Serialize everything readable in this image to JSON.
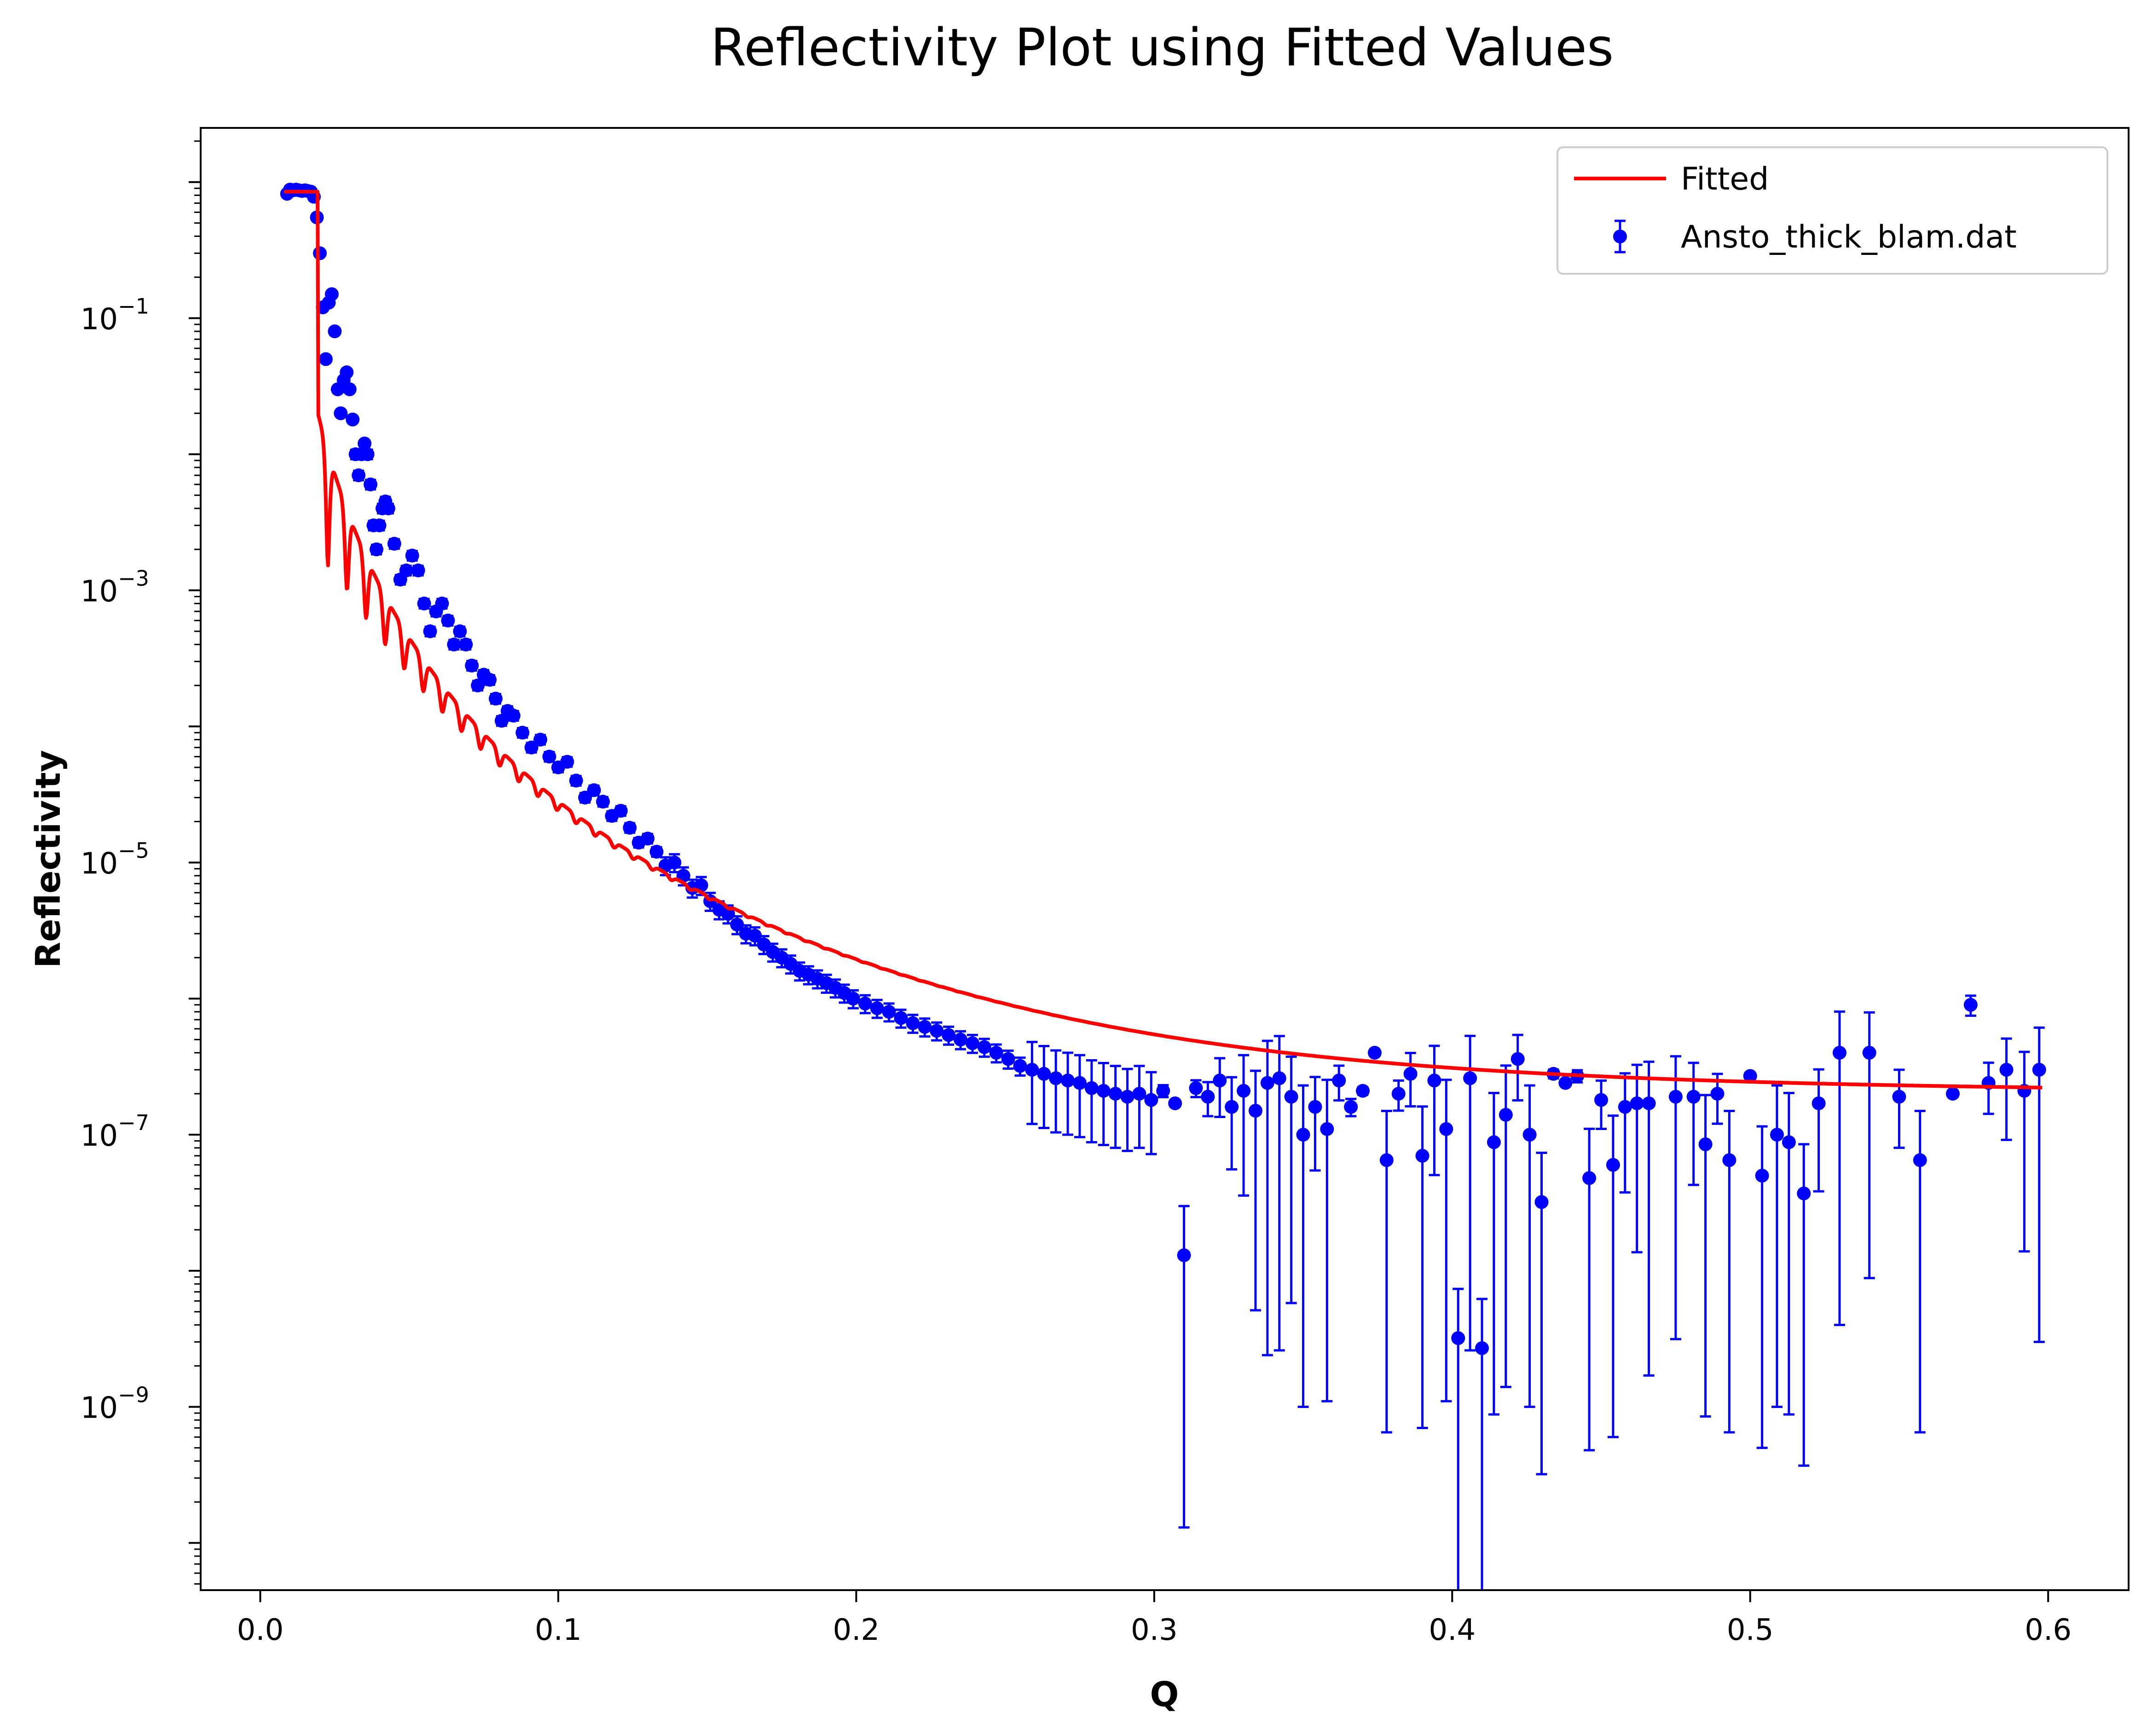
{
  "chart_data": {
    "type": "scatter",
    "title": "Reflectivity Plot using Fitted Values",
    "xlabel": "Q",
    "ylabel": "Reflectivity",
    "xlim": [
      -0.02,
      0.627
    ],
    "ylim_log10": [
      -10.35,
      -5.5
    ],
    "yscale": "log",
    "ylim": [
      4.5e-11,
      2.5
    ],
    "x_ticks": [
      "0.0",
      "0.1",
      "0.2",
      "0.3",
      "0.4",
      "0.5",
      "0.6"
    ],
    "x_tick_values": [
      0.0,
      0.1,
      0.2,
      0.3,
      0.4,
      0.5,
      0.6
    ],
    "y_ticks": [
      {
        "base": "10",
        "exp": "−1",
        "value": 0.1
      },
      {
        "base": "10",
        "exp": "−3",
        "value": 0.001
      },
      {
        "base": "10",
        "exp": "−5",
        "value": 1e-05
      },
      {
        "base": "10",
        "exp": "−7",
        "value": 1e-07
      },
      {
        "base": "10",
        "exp": "−9",
        "value": 1e-09
      }
    ],
    "grid": false,
    "legend_position": "top-right",
    "series": [
      {
        "name": "Fitted",
        "kind": "line",
        "color": "#ff0000",
        "model": {
          "q_start": 0.008,
          "q_critical": 0.0195,
          "q_end": 0.598,
          "plateau": 0.85,
          "background": 2e-07,
          "envelope_coeff": 2.8e-09,
          "envelope_power": 4,
          "fringe_period": 0.0064,
          "fringe_depth_decay": 0.045
        }
      },
      {
        "name": "Ansto_thick_blam.dat",
        "kind": "errorbar",
        "color": "#0000ff",
        "points": [
          [
            0.009,
            0.82
          ],
          [
            0.01,
            0.88
          ],
          [
            0.011,
            0.87
          ],
          [
            0.012,
            0.88
          ],
          [
            0.013,
            0.87
          ],
          [
            0.014,
            0.86
          ],
          [
            0.015,
            0.87
          ],
          [
            0.016,
            0.86
          ],
          [
            0.017,
            0.85
          ],
          [
            0.018,
            0.78
          ],
          [
            0.019,
            0.55
          ],
          [
            0.02,
            0.3
          ],
          [
            0.021,
            0.12
          ],
          [
            0.022,
            0.05
          ],
          [
            0.023,
            0.13
          ],
          [
            0.024,
            0.15
          ],
          [
            0.025,
            0.08
          ],
          [
            0.026,
            0.03
          ],
          [
            0.027,
            0.02
          ],
          [
            0.028,
            0.035
          ],
          [
            0.029,
            0.04
          ],
          [
            0.03,
            0.03
          ],
          [
            0.031,
            0.018
          ],
          [
            0.032,
            0.01
          ],
          [
            0.033,
            0.007
          ],
          [
            0.034,
            0.01
          ],
          [
            0.035,
            0.012
          ],
          [
            0.036,
            0.01
          ],
          [
            0.037,
            0.006
          ],
          [
            0.038,
            0.003
          ],
          [
            0.039,
            0.002
          ],
          [
            0.04,
            0.003
          ],
          [
            0.041,
            0.004
          ],
          [
            0.042,
            0.0045
          ],
          [
            0.043,
            0.004
          ],
          [
            0.045,
            0.0022
          ],
          [
            0.047,
            0.0012
          ],
          [
            0.049,
            0.0014
          ],
          [
            0.051,
            0.0018
          ],
          [
            0.053,
            0.0014
          ],
          [
            0.055,
            0.0008
          ],
          [
            0.057,
            0.0005
          ],
          [
            0.059,
            0.0007
          ],
          [
            0.061,
            0.0008
          ],
          [
            0.063,
            0.0006
          ],
          [
            0.065,
            0.0004
          ],
          [
            0.067,
            0.0005
          ],
          [
            0.069,
            0.0004
          ],
          [
            0.071,
            0.00028
          ],
          [
            0.073,
            0.0002
          ],
          [
            0.075,
            0.00024
          ],
          [
            0.077,
            0.00022
          ],
          [
            0.079,
            0.00016
          ],
          [
            0.081,
            0.00011
          ],
          [
            0.083,
            0.00013
          ],
          [
            0.085,
            0.00012
          ],
          [
            0.088,
            9e-05
          ],
          [
            0.091,
            7e-05
          ],
          [
            0.094,
            8e-05
          ],
          [
            0.097,
            6e-05
          ],
          [
            0.1,
            5e-05
          ],
          [
            0.103,
            5.5e-05
          ],
          [
            0.106,
            4e-05
          ],
          [
            0.109,
            3e-05
          ],
          [
            0.112,
            3.4e-05
          ],
          [
            0.115,
            2.8e-05
          ],
          [
            0.118,
            2.2e-05
          ],
          [
            0.121,
            2.4e-05
          ],
          [
            0.124,
            1.8e-05
          ],
          [
            0.127,
            1.4e-05
          ],
          [
            0.13,
            1.5e-05
          ],
          [
            0.133,
            1.2e-05
          ],
          [
            0.136,
            9.5e-06
          ],
          [
            0.139,
            1e-05
          ],
          [
            0.142,
            8e-06
          ],
          [
            0.145,
            6.5e-06
          ],
          [
            0.148,
            6.8e-06
          ],
          [
            0.151,
            5.2e-06
          ],
          [
            0.154,
            4.5e-06
          ],
          [
            0.157,
            4.2e-06
          ],
          [
            0.16,
            3.5e-06
          ],
          [
            0.163,
            3e-06
          ],
          [
            0.166,
            2.9e-06
          ],
          [
            0.169,
            2.5e-06
          ],
          [
            0.172,
            2.2e-06
          ],
          [
            0.175,
            2e-06
          ],
          [
            0.178,
            1.8e-06
          ],
          [
            0.181,
            1.6e-06
          ],
          [
            0.184,
            1.5e-06
          ],
          [
            0.187,
            1.4e-06
          ],
          [
            0.19,
            1.3e-06
          ],
          [
            0.193,
            1.2e-06
          ],
          [
            0.196,
            1.1e-06
          ],
          [
            0.199,
            1e-06
          ],
          [
            0.203,
            9.2e-07
          ],
          [
            0.207,
            8.5e-07
          ],
          [
            0.211,
            8e-07
          ],
          [
            0.215,
            7.2e-07
          ],
          [
            0.219,
            6.6e-07
          ],
          [
            0.223,
            6.2e-07
          ],
          [
            0.227,
            5.8e-07
          ],
          [
            0.231,
            5.4e-07
          ],
          [
            0.235,
            5e-07
          ],
          [
            0.239,
            4.7e-07
          ],
          [
            0.243,
            4.4e-07
          ],
          [
            0.247,
            4e-07
          ],
          [
            0.251,
            3.6e-07
          ],
          [
            0.255,
            3.2e-07
          ],
          [
            0.259,
            3e-07
          ],
          [
            0.263,
            2.8e-07
          ],
          [
            0.267,
            2.6e-07
          ],
          [
            0.271,
            2.5e-07
          ],
          [
            0.275,
            2.4e-07
          ],
          [
            0.279,
            2.2e-07
          ],
          [
            0.283,
            2.1e-07
          ],
          [
            0.287,
            2e-07
          ],
          [
            0.291,
            1.9e-07
          ],
          [
            0.295,
            2e-07
          ],
          [
            0.299,
            1.8e-07
          ],
          [
            0.303,
            2.1e-07
          ],
          [
            0.307,
            1.7e-07
          ],
          [
            0.31,
            1.3e-08
          ],
          [
            0.314,
            2.2e-07
          ],
          [
            0.318,
            1.9e-07
          ],
          [
            0.322,
            2.5e-07
          ],
          [
            0.326,
            1.6e-07
          ],
          [
            0.33,
            2.1e-07
          ],
          [
            0.334,
            1.5e-07
          ],
          [
            0.338,
            2.4e-07
          ],
          [
            0.342,
            2.6e-07
          ],
          [
            0.346,
            1.9e-07
          ],
          [
            0.35,
            1e-07
          ],
          [
            0.354,
            1.6e-07
          ],
          [
            0.358,
            1.1e-07
          ],
          [
            0.362,
            2.5e-07
          ],
          [
            0.366,
            1.6e-07
          ],
          [
            0.37,
            2.1e-07
          ],
          [
            0.374,
            4e-07
          ],
          [
            0.378,
            6.5e-08
          ],
          [
            0.382,
            2e-07
          ],
          [
            0.386,
            2.8e-07
          ],
          [
            0.39,
            7e-08
          ],
          [
            0.394,
            2.5e-07
          ],
          [
            0.398,
            1.1e-07
          ],
          [
            0.402,
            3.2e-09
          ],
          [
            0.406,
            2.6e-07
          ],
          [
            0.41,
            2.7e-09
          ],
          [
            0.414,
            8.8e-08
          ],
          [
            0.418,
            1.4e-07
          ],
          [
            0.422,
            3.6e-07
          ],
          [
            0.426,
            1e-07
          ],
          [
            0.43,
            3.2e-08
          ],
          [
            0.434,
            2.8e-07
          ],
          [
            0.438,
            2.4e-07
          ],
          [
            0.442,
            2.7e-07
          ],
          [
            0.446,
            4.8e-08
          ],
          [
            0.45,
            1.8e-07
          ],
          [
            0.454,
            6e-08
          ],
          [
            0.458,
            1.6e-07
          ],
          [
            0.462,
            1.7e-07
          ],
          [
            0.466,
            1.7e-07
          ],
          [
            0.475,
            1.9e-07
          ],
          [
            0.481,
            1.9e-07
          ],
          [
            0.485,
            8.5e-08
          ],
          [
            0.489,
            2e-07
          ],
          [
            0.493,
            6.5e-08
          ],
          [
            0.5,
            2.7e-07
          ],
          [
            0.504,
            5e-08
          ],
          [
            0.509,
            1e-07
          ],
          [
            0.513,
            8.8e-08
          ],
          [
            0.518,
            3.7e-08
          ],
          [
            0.523,
            1.7e-07
          ],
          [
            0.53,
            4e-07
          ],
          [
            0.54,
            4e-07
          ],
          [
            0.55,
            1.9e-07
          ],
          [
            0.557,
            6.5e-08
          ],
          [
            0.568,
            2e-07
          ],
          [
            0.574,
            9e-07
          ],
          [
            0.58,
            2.4e-07
          ],
          [
            0.586,
            3e-07
          ],
          [
            0.592,
            2.1e-07
          ],
          [
            0.597,
            3e-07
          ]
        ]
      }
    ]
  }
}
